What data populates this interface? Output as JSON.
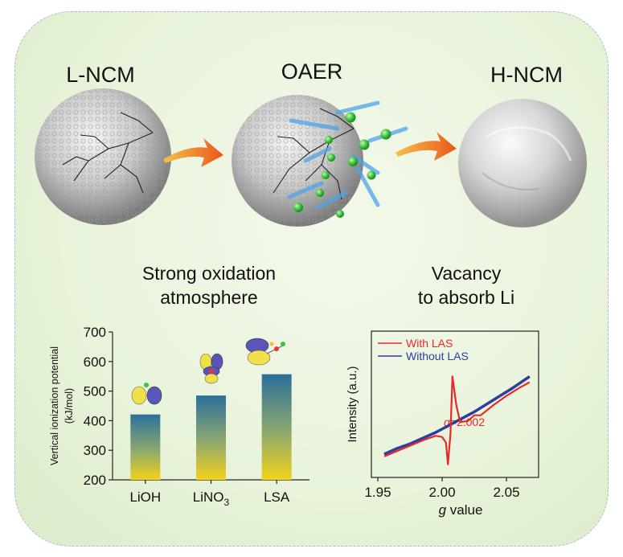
{
  "stages": {
    "left": "L-NCM",
    "middle": "OAER",
    "right": "H-NCM"
  },
  "captions": {
    "left_line1": "Strong oxidation",
    "left_line2": "atmosphere",
    "right_line1": "Vacancy",
    "right_line2": "to absorb Li"
  },
  "colors": {
    "arrow": "#f29a1c",
    "bar_top": "#2b6f9b",
    "bar_bottom": "#f2d21a",
    "li_atom": "#3cc43c",
    "with_las": "#e8282a",
    "without_las": "#2c3ea0"
  },
  "chart_data": [
    {
      "type": "bar",
      "categories": [
        "LiOH",
        "LiNO3",
        "LSA"
      ],
      "category_sub": [
        "",
        "3",
        ""
      ],
      "values": [
        421,
        485,
        557
      ],
      "ylabel_line1": "Vertical ionization potential",
      "ylabel_line2": "(kJ/mol)",
      "ylim": [
        200,
        700
      ],
      "yticks": [
        200,
        300,
        400,
        500,
        600,
        700
      ]
    },
    {
      "type": "line",
      "xlabel_italic": "g",
      "xlabel_rest": " value",
      "ylabel": "Intensity (a.u.)",
      "xlim": [
        1.945,
        2.075
      ],
      "xticks": [
        1.95,
        2.0,
        2.05
      ],
      "xtick_labels": [
        "1.95",
        "2.00",
        "2.05"
      ],
      "series": [
        {
          "name": "With LAS",
          "color": "#e8282a",
          "points": [
            [
              1.955,
              0.1
            ],
            [
              1.97,
              0.17
            ],
            [
              1.985,
              0.24
            ],
            [
              1.995,
              0.28
            ],
            [
              2.0,
              0.27
            ],
            [
              2.003,
              0.22
            ],
            [
              2.0045,
              0.03
            ],
            [
              2.0065,
              0.3
            ],
            [
              2.008,
              0.8
            ],
            [
              2.011,
              0.55
            ],
            [
              2.014,
              0.4
            ],
            [
              2.02,
              0.41
            ],
            [
              2.025,
              0.46
            ],
            [
              2.03,
              0.46
            ],
            [
              2.04,
              0.55
            ],
            [
              2.05,
              0.63
            ],
            [
              2.06,
              0.7
            ],
            [
              2.068,
              0.75
            ]
          ]
        },
        {
          "name": "Without LAS",
          "color": "#2c3ea0",
          "points": [
            [
              1.955,
              0.12
            ],
            [
              1.965,
              0.17
            ],
            [
              1.975,
              0.21
            ],
            [
              1.985,
              0.26
            ],
            [
              1.995,
              0.31
            ],
            [
              2.005,
              0.37
            ],
            [
              2.015,
              0.43
            ],
            [
              2.025,
              0.49
            ],
            [
              2.035,
              0.56
            ],
            [
              2.045,
              0.63
            ],
            [
              2.055,
              0.7
            ],
            [
              2.068,
              0.8
            ]
          ]
        }
      ],
      "annotation_g": "g",
      "annotation_rest": "=2.002"
    }
  ]
}
